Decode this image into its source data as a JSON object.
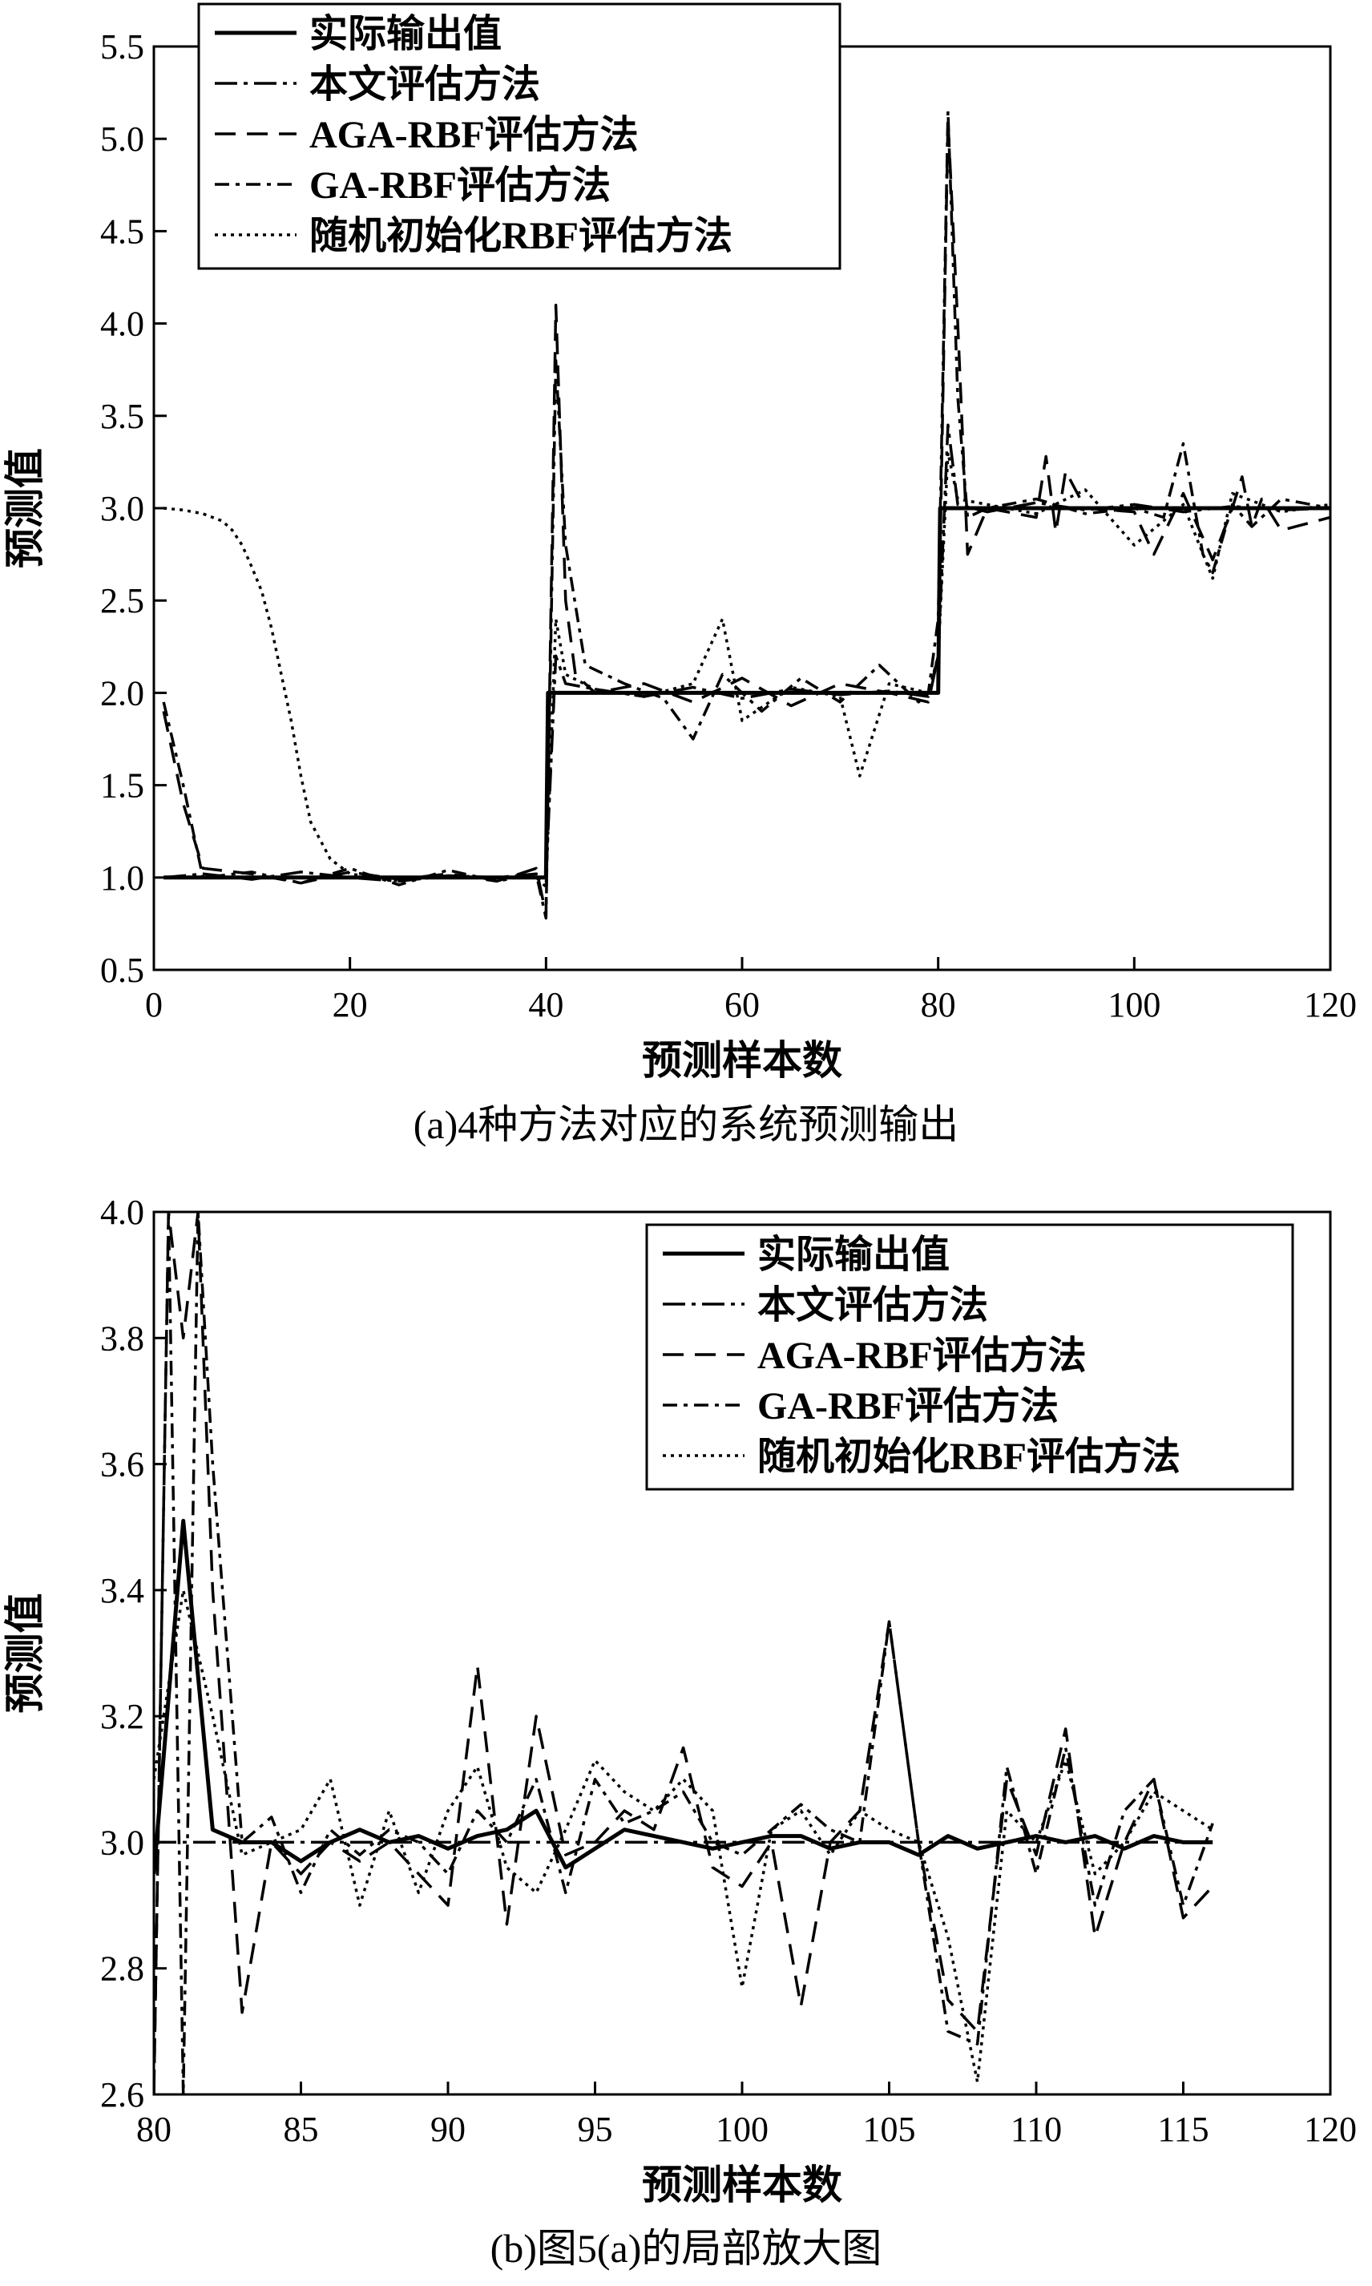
{
  "chart_data": [
    {
      "type": "line",
      "caption": "(a)4种方法对应的系统预测输出",
      "xlabel": "预测样本数",
      "ylabel": "预测值",
      "xlim": [
        0,
        120
      ],
      "ylim": [
        0.5,
        5.5
      ],
      "xticks": [
        0,
        20,
        40,
        60,
        80,
        100,
        120
      ],
      "yticks": [
        0.5,
        1.0,
        1.5,
        2.0,
        2.5,
        3.0,
        3.5,
        4.0,
        4.5,
        5.0,
        5.5
      ],
      "legend_position": "top-left",
      "series": [
        {
          "name": "实际输出值",
          "style": "solid",
          "x": [
            1,
            40,
            40.2,
            80,
            80.2,
            120
          ],
          "y": [
            1.0,
            1.0,
            2.0,
            2.0,
            3.0,
            3.0
          ]
        },
        {
          "name": "本文评估方法",
          "style": "dashdot",
          "x": [
            1,
            5,
            10,
            15,
            20,
            25,
            30,
            35,
            39,
            40,
            41,
            42,
            45,
            50,
            55,
            60,
            65,
            70,
            75,
            79,
            80,
            81,
            82,
            85,
            90,
            95,
            100,
            105,
            110,
            115,
            120
          ],
          "y": [
            1.0,
            1.02,
            0.99,
            1.03,
            1.0,
            0.98,
            1.01,
            1.0,
            1.02,
            1.0,
            2.2,
            2.05,
            2.02,
            1.98,
            2.03,
            1.97,
            2.02,
            1.99,
            2.01,
            1.98,
            2.2,
            3.45,
            3.02,
            2.98,
            3.03,
            2.99,
            3.02,
            2.98,
            3.01,
            2.99,
            3.0
          ]
        },
        {
          "name": "AGA-RBF评估方法",
          "style": "dashed",
          "x": [
            1,
            3,
            5,
            10,
            15,
            20,
            25,
            30,
            35,
            39,
            40,
            41,
            42,
            43,
            45,
            50,
            55,
            60,
            65,
            70,
            75,
            79,
            80,
            81,
            82,
            83,
            85,
            90,
            91,
            92,
            93,
            95,
            100,
            102,
            105,
            108,
            110,
            111,
            112,
            113,
            115,
            120
          ],
          "y": [
            1.9,
            1.4,
            1.05,
            1.02,
            0.97,
            1.03,
            0.99,
            1.02,
            0.98,
            1.05,
            0.8,
            4.1,
            2.5,
            2.1,
            2.0,
            2.05,
            1.95,
            2.08,
            1.93,
            2.05,
            2.0,
            1.95,
            2.2,
            5.1,
            4.0,
            2.75,
            3.0,
            2.95,
            3.28,
            2.87,
            3.2,
            3.0,
            2.98,
            2.75,
            3.08,
            2.72,
            3.0,
            3.17,
            2.9,
            3.05,
            2.88,
            2.95
          ]
        },
        {
          "name": "GA-RBF评估方法",
          "style": "dashdot2",
          "x": [
            1,
            3,
            5,
            10,
            15,
            20,
            25,
            30,
            35,
            39,
            40,
            41,
            42,
            44,
            48,
            52,
            55,
            58,
            62,
            66,
            70,
            74,
            78,
            79,
            80,
            81,
            82,
            83,
            85,
            90,
            95,
            100,
            103,
            105,
            107,
            108,
            110,
            112,
            115,
            120
          ],
          "y": [
            1.95,
            1.5,
            1.0,
            1.03,
            0.97,
            1.05,
            0.96,
            1.04,
            0.98,
            1.02,
            0.78,
            3.8,
            2.8,
            2.15,
            2.05,
            1.97,
            1.75,
            2.1,
            1.9,
            2.08,
            1.95,
            2.15,
            1.95,
            2.0,
            2.4,
            5.15,
            3.6,
            2.95,
            3.0,
            3.05,
            2.97,
            3.0,
            2.95,
            3.35,
            2.75,
            2.65,
            3.02,
            2.9,
            3.05,
            3.0
          ]
        },
        {
          "name": "随机初始化RBF评估方法",
          "style": "dotted",
          "x": [
            1,
            3,
            5,
            7,
            8,
            9,
            10,
            11,
            12,
            13,
            14,
            15,
            16,
            17,
            18,
            20,
            25,
            30,
            35,
            39,
            40,
            41,
            42,
            45,
            50,
            55,
            58,
            60,
            65,
            70,
            72,
            75,
            79,
            80,
            81,
            82,
            85,
            90,
            95,
            100,
            105,
            108,
            110,
            115,
            120
          ],
          "y": [
            3.0,
            2.99,
            2.97,
            2.93,
            2.88,
            2.8,
            2.68,
            2.55,
            2.35,
            2.1,
            1.85,
            1.55,
            1.3,
            1.2,
            1.1,
            1.02,
            0.98,
            1.01,
            1.0,
            1.0,
            0.95,
            2.4,
            2.1,
            2.02,
            1.98,
            2.05,
            2.4,
            1.85,
            2.03,
            1.98,
            1.55,
            2.05,
            2.0,
            2.2,
            3.3,
            3.05,
            3.02,
            2.97,
            3.1,
            2.8,
            3.02,
            2.62,
            3.08,
            2.98,
            3.02
          ]
        }
      ]
    },
    {
      "type": "line",
      "caption": "(b)图5(a)的局部放大图",
      "xlabel": "预测样本数",
      "ylabel": "预测值",
      "xlim": [
        80,
        120
      ],
      "ylim": [
        2.6,
        4.0
      ],
      "xticks": [
        80,
        85,
        90,
        95,
        100,
        105,
        110,
        115,
        120
      ],
      "yticks": [
        2.6,
        2.8,
        3.0,
        3.2,
        3.4,
        3.6,
        3.8,
        4.0
      ],
      "legend_position": "top-right",
      "series": [
        {
          "name": "实际输出值",
          "style": "solid",
          "x": [
            80,
            81,
            82,
            83,
            84,
            85,
            86,
            87,
            88,
            89,
            90,
            91,
            92,
            93,
            94,
            95,
            96,
            97,
            98,
            99,
            100,
            101,
            102,
            103,
            104,
            105,
            106,
            107,
            108,
            109,
            110,
            111,
            112,
            113,
            114,
            115,
            116
          ],
          "y": [
            2.95,
            3.51,
            3.02,
            3.0,
            3.0,
            2.97,
            3.0,
            3.02,
            3.0,
            3.01,
            2.99,
            3.01,
            3.02,
            3.05,
            2.96,
            2.99,
            3.02,
            3.01,
            3.0,
            2.99,
            3.0,
            3.01,
            3.01,
            2.99,
            3.0,
            3.0,
            2.98,
            3.01,
            2.99,
            3.0,
            3.01,
            3.0,
            3.01,
            2.99,
            3.01,
            3.0,
            3.0
          ]
        },
        {
          "name": "本文评估方法",
          "style": "dashdot",
          "x": [
            80,
            116
          ],
          "y": [
            3.0,
            3.0
          ]
        },
        {
          "name": "AGA-RBF评估方法",
          "style": "dashed",
          "x": [
            80,
            80.5,
            81,
            81.5,
            82,
            83,
            84,
            85,
            86,
            87,
            88,
            89,
            90,
            91,
            92,
            93,
            94,
            95,
            96,
            97,
            98,
            99,
            100,
            101,
            102,
            103,
            104,
            105,
            106,
            107,
            108,
            109,
            110,
            111,
            112,
            113,
            114,
            115,
            116
          ],
          "y": [
            2.6,
            4.0,
            3.8,
            4.0,
            3.4,
            2.73,
            3.0,
            2.95,
            3.0,
            2.97,
            3.0,
            2.95,
            2.9,
            3.28,
            2.87,
            3.2,
            2.98,
            3.0,
            3.05,
            3.02,
            3.15,
            2.96,
            2.93,
            3.0,
            2.74,
            3.0,
            3.05,
            3.35,
            3.0,
            2.75,
            2.7,
            3.1,
            2.98,
            3.18,
            2.85,
            3.0,
            3.1,
            2.88,
            2.93
          ]
        },
        {
          "name": "GA-RBF评估方法",
          "style": "dashdot2",
          "x": [
            80,
            80.5,
            81,
            81.5,
            82,
            83,
            84,
            85,
            86,
            87,
            88,
            89,
            90,
            91,
            92,
            93,
            94,
            95,
            96,
            97,
            98,
            99,
            100,
            101,
            102,
            103,
            104,
            105,
            106,
            107,
            108,
            109,
            110,
            111,
            112,
            113,
            114,
            115,
            116
          ],
          "y": [
            2.6,
            4.0,
            2.6,
            4.0,
            3.6,
            3.0,
            3.04,
            2.92,
            3.02,
            2.98,
            3.02,
            3.0,
            2.95,
            3.05,
            3.0,
            3.1,
            2.92,
            3.1,
            3.03,
            3.05,
            3.08,
            3.0,
            2.98,
            3.02,
            3.06,
            3.02,
            3.0,
            3.35,
            3.0,
            2.7,
            2.68,
            3.12,
            2.95,
            3.15,
            2.9,
            3.05,
            3.1,
            2.9,
            3.03
          ]
        },
        {
          "name": "随机初始化RBF评估方法",
          "style": "dotted",
          "x": [
            80,
            81,
            82,
            83,
            84,
            85,
            86,
            87,
            88,
            89,
            90,
            91,
            92,
            93,
            94,
            95,
            96,
            97,
            98,
            99,
            100,
            101,
            102,
            103,
            104,
            105,
            106,
            107,
            108,
            109,
            110,
            111,
            112,
            113,
            114,
            115,
            116
          ],
          "y": [
            3.1,
            3.4,
            3.2,
            2.98,
            3.0,
            3.02,
            3.1,
            2.9,
            3.05,
            2.92,
            3.05,
            3.12,
            2.96,
            2.92,
            3.02,
            3.13,
            3.08,
            3.05,
            3.1,
            3.05,
            2.77,
            3.02,
            3.05,
            2.98,
            3.05,
            3.02,
            3.0,
            2.85,
            2.62,
            3.05,
            3.0,
            3.13,
            2.95,
            3.0,
            3.08,
            3.05,
            3.02
          ]
        }
      ]
    }
  ]
}
